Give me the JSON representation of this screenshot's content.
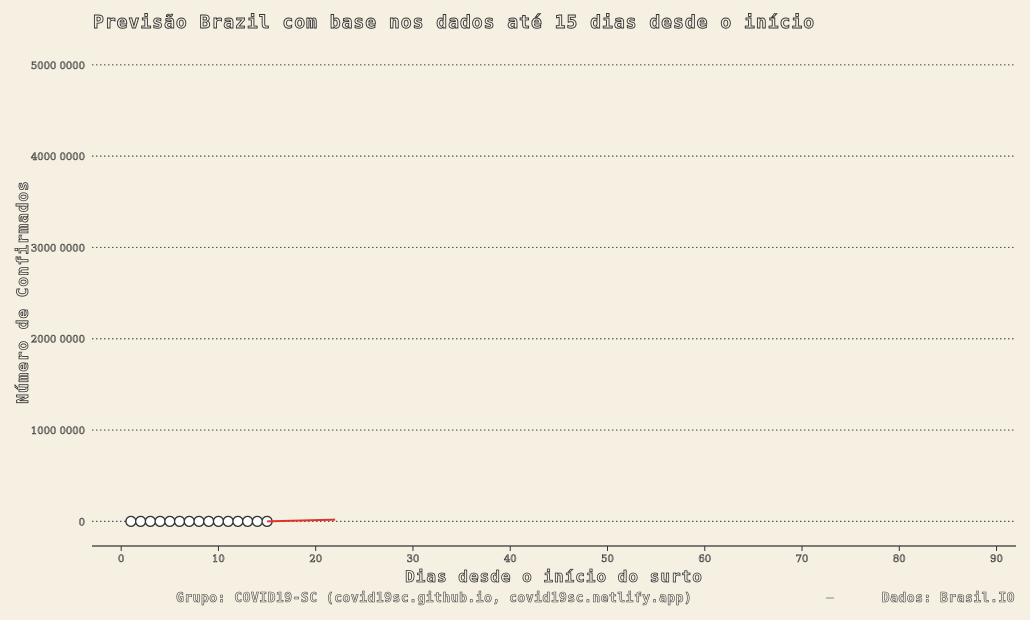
{
  "chart_data": {
    "type": "scatter",
    "title": "Previsão Brazil com base nos dados até 15 dias desde o início",
    "xlabel": "Dias desde o início do surto",
    "ylabel": "Número de Confirmados",
    "caption_left": "Grupo: COVID19-SC (covid19sc.github.io, covid19sc.netlify.app)",
    "caption_right": "Dados: Brasil.IO",
    "xlim": [
      -3,
      92
    ],
    "ylim": [
      -270000,
      5250000
    ],
    "x_ticks": [
      0,
      10,
      20,
      30,
      40,
      50,
      60,
      70,
      80,
      90
    ],
    "x_tick_labels": [
      "0",
      "10",
      "20",
      "30",
      "40",
      "50",
      "60",
      "70",
      "80",
      "90"
    ],
    "y_ticks": [
      0,
      1000000,
      2000000,
      3000000,
      4000000,
      5000000
    ],
    "y_tick_labels": [
      "0",
      "1000 0000",
      "2000 0000",
      "3000 0000",
      "4000 0000",
      "5000 0000"
    ],
    "grid": true,
    "series": [
      {
        "kind": "points",
        "x": [
          1,
          2,
          3,
          4,
          5,
          6,
          7,
          8,
          9,
          10,
          11,
          12,
          13,
          14,
          15
        ],
        "y": [
          1,
          1,
          1,
          2,
          2,
          2,
          3,
          4,
          8,
          13,
          19,
          25,
          34,
          52,
          77
        ],
        "color": "#333333"
      },
      {
        "kind": "line",
        "x": [
          15,
          16,
          17,
          18,
          19,
          20,
          21,
          22
        ],
        "y": [
          77,
          2500,
          5000,
          7500,
          10000,
          13000,
          16000,
          19000
        ],
        "color": "#e0332b"
      }
    ]
  }
}
